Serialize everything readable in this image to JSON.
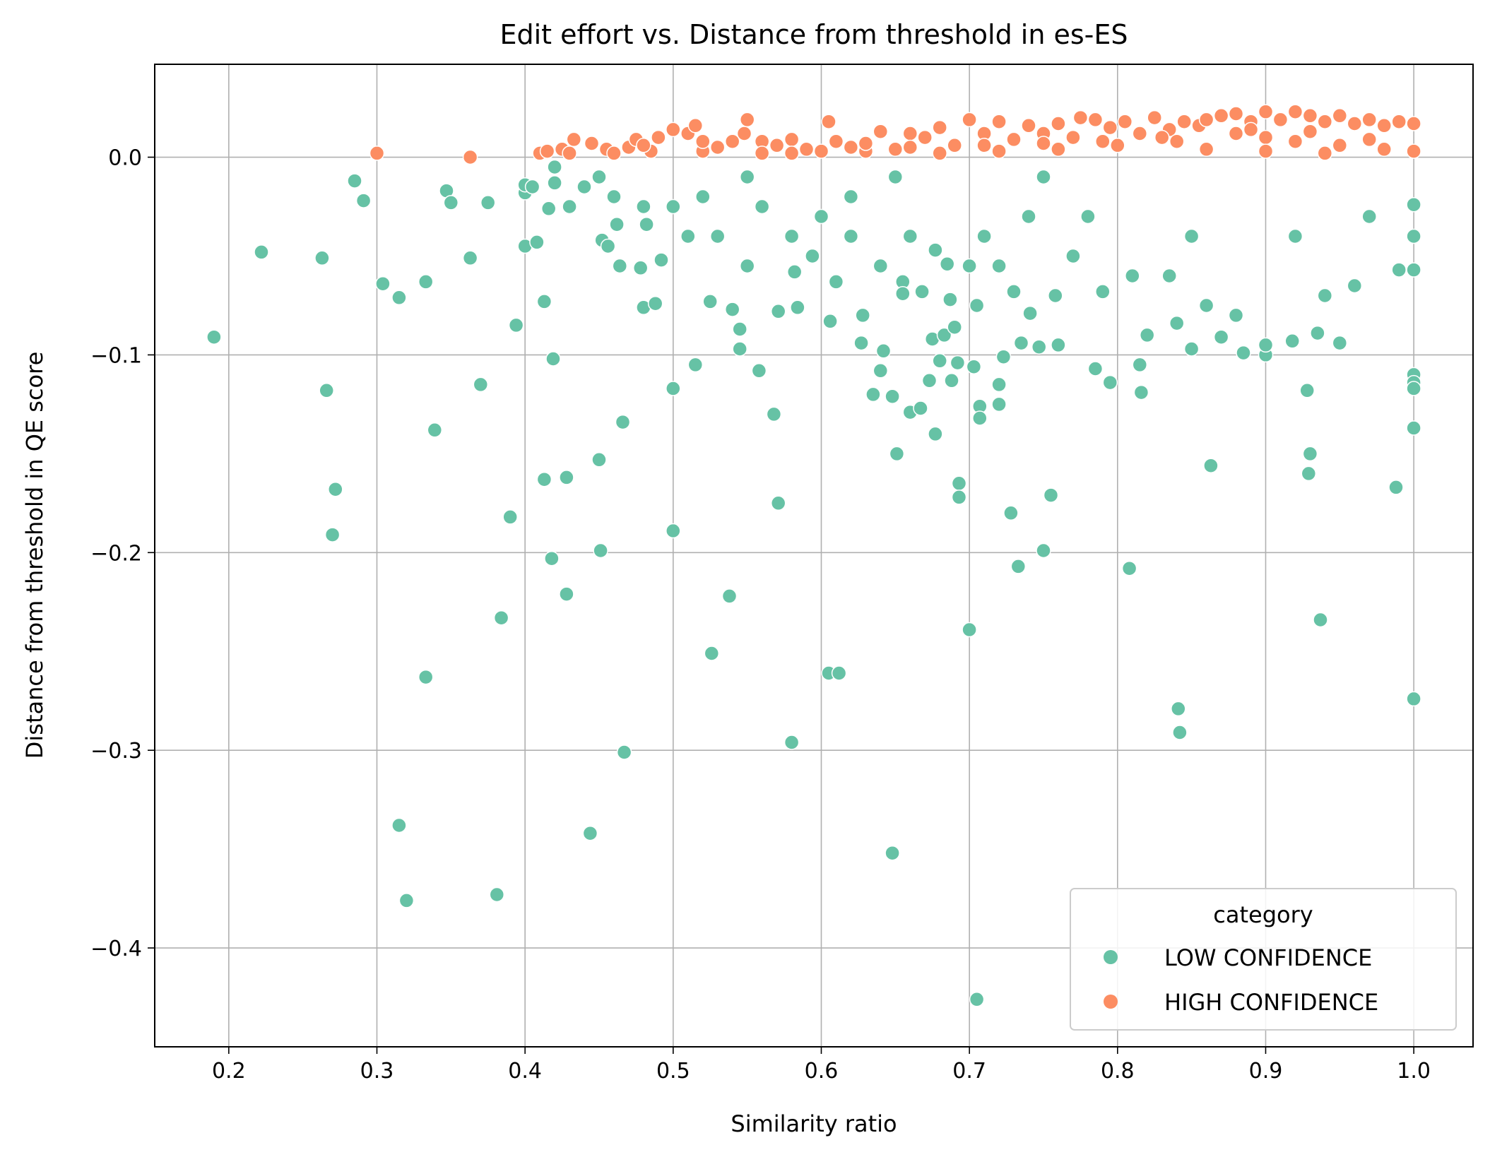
{
  "chart_data": {
    "type": "scatter",
    "title": "Edit effort vs. Distance from threshold in es-ES",
    "xlabel": "Similarity ratio",
    "ylabel": "Distance from threshold in QE score",
    "xlim": [
      0.15,
      1.04
    ],
    "ylim": [
      -0.45,
      0.047
    ],
    "xticks": [
      0.2,
      0.3,
      0.4,
      0.5,
      0.6,
      0.7,
      0.8,
      0.9,
      1.0
    ],
    "xtick_labels": [
      "0.2",
      "0.3",
      "0.4",
      "0.5",
      "0.6",
      "0.7",
      "0.8",
      "0.9",
      "1.0"
    ],
    "yticks": [
      0.0,
      -0.1,
      -0.2,
      -0.3,
      -0.4
    ],
    "ytick_labels": [
      "0.0",
      "−0.1",
      "−0.2",
      "−0.3",
      "−0.4"
    ],
    "grid": true,
    "legend": {
      "title": "category",
      "position": "lower-right",
      "entries": [
        "LOW CONFIDENCE",
        "HIGH CONFIDENCE"
      ]
    },
    "colors": {
      "LOW CONFIDENCE": "#66c2a5",
      "HIGH CONFIDENCE": "#fc8d62"
    },
    "series": [
      {
        "name": "LOW CONFIDENCE",
        "points": [
          [
            0.19,
            -0.091
          ],
          [
            0.222,
            -0.048
          ],
          [
            0.263,
            -0.051
          ],
          [
            0.266,
            -0.118
          ],
          [
            0.27,
            -0.191
          ],
          [
            0.272,
            -0.168
          ],
          [
            0.285,
            -0.012
          ],
          [
            0.291,
            -0.022
          ],
          [
            0.304,
            -0.064
          ],
          [
            0.315,
            -0.071
          ],
          [
            0.315,
            -0.338
          ],
          [
            0.32,
            -0.376
          ],
          [
            0.333,
            -0.063
          ],
          [
            0.333,
            -0.263
          ],
          [
            0.339,
            -0.138
          ],
          [
            0.347,
            -0.017
          ],
          [
            0.35,
            -0.023
          ],
          [
            0.363,
            -0.051
          ],
          [
            0.37,
            -0.115
          ],
          [
            0.375,
            -0.023
          ],
          [
            0.381,
            -0.373
          ],
          [
            0.384,
            -0.233
          ],
          [
            0.39,
            -0.182
          ],
          [
            0.394,
            -0.085
          ],
          [
            0.4,
            -0.045
          ],
          [
            0.4,
            -0.018
          ],
          [
            0.4,
            -0.014
          ],
          [
            0.405,
            -0.015
          ],
          [
            0.408,
            -0.043
          ],
          [
            0.413,
            -0.073
          ],
          [
            0.413,
            -0.163
          ],
          [
            0.416,
            -0.026
          ],
          [
            0.418,
            -0.203
          ],
          [
            0.419,
            -0.102
          ],
          [
            0.42,
            -0.013
          ],
          [
            0.428,
            -0.162
          ],
          [
            0.428,
            -0.221
          ],
          [
            0.43,
            -0.025
          ],
          [
            0.444,
            -0.342
          ],
          [
            0.45,
            -0.153
          ],
          [
            0.451,
            -0.199
          ],
          [
            0.452,
            -0.042
          ],
          [
            0.456,
            -0.045
          ],
          [
            0.462,
            -0.034
          ],
          [
            0.464,
            -0.055
          ],
          [
            0.466,
            -0.134
          ],
          [
            0.467,
            -0.301
          ],
          [
            0.478,
            -0.056
          ],
          [
            0.48,
            -0.076
          ],
          [
            0.482,
            -0.034
          ],
          [
            0.488,
            -0.074
          ],
          [
            0.492,
            -0.052
          ],
          [
            0.5,
            -0.117
          ],
          [
            0.5,
            -0.189
          ],
          [
            0.515,
            -0.105
          ],
          [
            0.525,
            -0.073
          ],
          [
            0.526,
            -0.251
          ],
          [
            0.538,
            -0.222
          ],
          [
            0.54,
            -0.077
          ],
          [
            0.545,
            -0.097
          ],
          [
            0.545,
            -0.087
          ],
          [
            0.558,
            -0.108
          ],
          [
            0.568,
            -0.13
          ],
          [
            0.571,
            -0.175
          ],
          [
            0.571,
            -0.078
          ],
          [
            0.58,
            -0.296
          ],
          [
            0.582,
            -0.058
          ],
          [
            0.584,
            -0.076
          ],
          [
            0.594,
            -0.05
          ],
          [
            0.605,
            -0.261
          ],
          [
            0.606,
            -0.083
          ],
          [
            0.61,
            -0.063
          ],
          [
            0.612,
            -0.261
          ],
          [
            0.627,
            -0.094
          ],
          [
            0.628,
            -0.08
          ],
          [
            0.635,
            -0.12
          ],
          [
            0.64,
            -0.108
          ],
          [
            0.642,
            -0.098
          ],
          [
            0.648,
            -0.121
          ],
          [
            0.648,
            -0.352
          ],
          [
            0.651,
            -0.15
          ],
          [
            0.655,
            -0.063
          ],
          [
            0.655,
            -0.069
          ],
          [
            0.66,
            -0.129
          ],
          [
            0.667,
            -0.127
          ],
          [
            0.668,
            -0.068
          ],
          [
            0.673,
            -0.113
          ],
          [
            0.675,
            -0.092
          ],
          [
            0.677,
            -0.14
          ],
          [
            0.677,
            -0.047
          ],
          [
            0.68,
            -0.103
          ],
          [
            0.683,
            -0.09
          ],
          [
            0.685,
            -0.054
          ],
          [
            0.687,
            -0.072
          ],
          [
            0.688,
            -0.113
          ],
          [
            0.69,
            -0.086
          ],
          [
            0.692,
            -0.104
          ],
          [
            0.693,
            -0.165
          ],
          [
            0.693,
            -0.172
          ],
          [
            0.7,
            -0.239
          ],
          [
            0.703,
            -0.106
          ],
          [
            0.705,
            -0.075
          ],
          [
            0.705,
            -0.426
          ],
          [
            0.707,
            -0.126
          ],
          [
            0.707,
            -0.132
          ],
          [
            0.72,
            -0.115
          ],
          [
            0.72,
            -0.125
          ],
          [
            0.723,
            -0.101
          ],
          [
            0.728,
            -0.18
          ],
          [
            0.73,
            -0.068
          ],
          [
            0.733,
            -0.207
          ],
          [
            0.735,
            -0.094
          ],
          [
            0.741,
            -0.079
          ],
          [
            0.747,
            -0.096
          ],
          [
            0.75,
            -0.199
          ],
          [
            0.755,
            -0.171
          ],
          [
            0.758,
            -0.07
          ],
          [
            0.76,
            -0.095
          ],
          [
            0.785,
            -0.107
          ],
          [
            0.795,
            -0.114
          ],
          [
            0.808,
            -0.208
          ],
          [
            0.815,
            -0.105
          ],
          [
            0.816,
            -0.119
          ],
          [
            0.82,
            -0.09
          ],
          [
            0.84,
            -0.084
          ],
          [
            0.841,
            -0.279
          ],
          [
            0.842,
            -0.291
          ],
          [
            0.85,
            -0.097
          ],
          [
            0.863,
            -0.156
          ],
          [
            0.87,
            -0.091
          ],
          [
            0.885,
            -0.099
          ],
          [
            0.9,
            -0.1
          ],
          [
            0.9,
            -0.095
          ],
          [
            0.918,
            -0.093
          ],
          [
            0.928,
            -0.118
          ],
          [
            0.929,
            -0.16
          ],
          [
            0.93,
            -0.15
          ],
          [
            0.937,
            -0.234
          ],
          [
            0.935,
            -0.089
          ],
          [
            0.95,
            -0.094
          ],
          [
            0.988,
            -0.167
          ],
          [
            1.0,
            -0.11
          ],
          [
            1.0,
            -0.114
          ],
          [
            1.0,
            -0.117
          ],
          [
            1.0,
            -0.137
          ],
          [
            1.0,
            -0.274
          ],
          [
            0.99,
            -0.057
          ],
          [
            1.0,
            -0.057
          ],
          [
            1.0,
            -0.04
          ],
          [
            1.0,
            -0.024
          ],
          [
            0.96,
            -0.065
          ],
          [
            0.94,
            -0.07
          ],
          [
            0.88,
            -0.08
          ],
          [
            0.86,
            -0.075
          ],
          [
            0.835,
            -0.06
          ],
          [
            0.81,
            -0.06
          ],
          [
            0.79,
            -0.068
          ],
          [
            0.77,
            -0.05
          ],
          [
            0.72,
            -0.055
          ],
          [
            0.71,
            -0.04
          ],
          [
            0.7,
            -0.055
          ],
          [
            0.66,
            -0.04
          ],
          [
            0.64,
            -0.055
          ],
          [
            0.62,
            -0.04
          ],
          [
            0.6,
            -0.03
          ],
          [
            0.58,
            -0.04
          ],
          [
            0.55,
            -0.055
          ],
          [
            0.53,
            -0.04
          ],
          [
            0.51,
            -0.04
          ],
          [
            0.5,
            -0.025
          ],
          [
            0.48,
            -0.025
          ],
          [
            0.46,
            -0.02
          ],
          [
            0.44,
            -0.015
          ],
          [
            0.42,
            -0.005
          ],
          [
            0.52,
            -0.02
          ],
          [
            0.56,
            -0.025
          ],
          [
            0.62,
            -0.02
          ],
          [
            0.74,
            -0.03
          ],
          [
            0.78,
            -0.03
          ],
          [
            0.85,
            -0.04
          ],
          [
            0.92,
            -0.04
          ],
          [
            0.97,
            -0.03
          ],
          [
            0.65,
            -0.01
          ],
          [
            0.75,
            -0.01
          ],
          [
            0.55,
            -0.01
          ],
          [
            0.45,
            -0.01
          ]
        ]
      },
      {
        "name": "HIGH CONFIDENCE",
        "points": [
          [
            0.3,
            0.002
          ],
          [
            0.363,
            0.0
          ],
          [
            0.41,
            0.002
          ],
          [
            0.415,
            0.003
          ],
          [
            0.425,
            0.004
          ],
          [
            0.433,
            0.009
          ],
          [
            0.445,
            0.007
          ],
          [
            0.455,
            0.004
          ],
          [
            0.46,
            0.002
          ],
          [
            0.47,
            0.005
          ],
          [
            0.475,
            0.009
          ],
          [
            0.485,
            0.003
          ],
          [
            0.49,
            0.01
          ],
          [
            0.5,
            0.014
          ],
          [
            0.51,
            0.012
          ],
          [
            0.515,
            0.016
          ],
          [
            0.52,
            0.003
          ],
          [
            0.53,
            0.005
          ],
          [
            0.54,
            0.008
          ],
          [
            0.548,
            0.012
          ],
          [
            0.55,
            0.019
          ],
          [
            0.56,
            0.008
          ],
          [
            0.57,
            0.006
          ],
          [
            0.58,
            0.009
          ],
          [
            0.59,
            0.004
          ],
          [
            0.605,
            0.018
          ],
          [
            0.61,
            0.008
          ],
          [
            0.62,
            0.005
          ],
          [
            0.63,
            0.003
          ],
          [
            0.64,
            0.013
          ],
          [
            0.65,
            0.004
          ],
          [
            0.66,
            0.012
          ],
          [
            0.67,
            0.01
          ],
          [
            0.68,
            0.015
          ],
          [
            0.69,
            0.006
          ],
          [
            0.7,
            0.019
          ],
          [
            0.71,
            0.012
          ],
          [
            0.72,
            0.018
          ],
          [
            0.73,
            0.009
          ],
          [
            0.74,
            0.016
          ],
          [
            0.75,
            0.012
          ],
          [
            0.76,
            0.017
          ],
          [
            0.77,
            0.01
          ],
          [
            0.775,
            0.02
          ],
          [
            0.785,
            0.019
          ],
          [
            0.795,
            0.015
          ],
          [
            0.805,
            0.018
          ],
          [
            0.815,
            0.012
          ],
          [
            0.825,
            0.02
          ],
          [
            0.835,
            0.014
          ],
          [
            0.845,
            0.018
          ],
          [
            0.855,
            0.016
          ],
          [
            0.86,
            0.019
          ],
          [
            0.87,
            0.021
          ],
          [
            0.88,
            0.022
          ],
          [
            0.89,
            0.018
          ],
          [
            0.9,
            0.023
          ],
          [
            0.91,
            0.019
          ],
          [
            0.92,
            0.023
          ],
          [
            0.93,
            0.021
          ],
          [
            0.94,
            0.018
          ],
          [
            0.95,
            0.021
          ],
          [
            0.96,
            0.017
          ],
          [
            0.97,
            0.019
          ],
          [
            0.98,
            0.016
          ],
          [
            0.99,
            0.018
          ],
          [
            1.0,
            0.017
          ],
          [
            0.88,
            0.012
          ],
          [
            0.9,
            0.01
          ],
          [
            0.92,
            0.008
          ],
          [
            0.95,
            0.006
          ],
          [
            0.98,
            0.004
          ],
          [
            1.0,
            0.003
          ],
          [
            0.84,
            0.008
          ],
          [
            0.8,
            0.006
          ],
          [
            0.76,
            0.004
          ],
          [
            0.72,
            0.003
          ],
          [
            0.68,
            0.002
          ],
          [
            0.86,
            0.004
          ],
          [
            0.9,
            0.003
          ],
          [
            0.94,
            0.002
          ],
          [
            0.97,
            0.009
          ],
          [
            0.93,
            0.013
          ],
          [
            0.89,
            0.014
          ],
          [
            0.83,
            0.01
          ],
          [
            0.79,
            0.008
          ],
          [
            0.75,
            0.007
          ],
          [
            0.71,
            0.006
          ],
          [
            0.66,
            0.005
          ],
          [
            0.6,
            0.003
          ],
          [
            0.56,
            0.002
          ],
          [
            0.48,
            0.006
          ],
          [
            0.43,
            0.002
          ],
          [
            0.52,
            0.008
          ],
          [
            0.58,
            0.002
          ],
          [
            0.63,
            0.007
          ]
        ]
      }
    ]
  }
}
